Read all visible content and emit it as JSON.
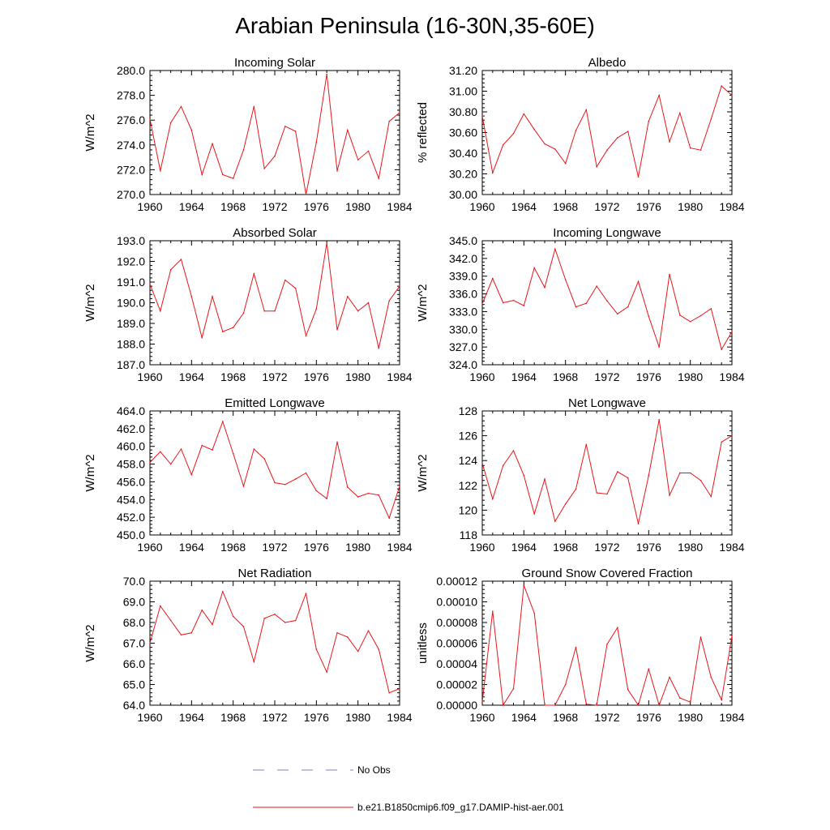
{
  "figure": {
    "title": "Arabian Peninsula (16-30N,35-60E)",
    "series_color": "#e8161b",
    "noobs_color": "#7f7fc8"
  },
  "legend": {
    "noobs_label": "No Obs",
    "model_label": "b.e21.B1850cmip6.f09_g17.DAMIP-hist-aer.001"
  },
  "chart_data": [
    {
      "type": "line",
      "title": "Incoming Solar",
      "ylabel": "W/m^2",
      "x": [
        1960,
        1961,
        1962,
        1963,
        1964,
        1965,
        1966,
        1967,
        1968,
        1969,
        1970,
        1971,
        1972,
        1973,
        1974,
        1975,
        1976,
        1977,
        1978,
        1979,
        1980,
        1981,
        1982,
        1983,
        1984
      ],
      "values": [
        276.1,
        271.9,
        275.8,
        277.1,
        275.2,
        271.6,
        274.1,
        271.6,
        271.3,
        273.6,
        277.1,
        272.1,
        273.1,
        275.5,
        275.1,
        270.0,
        274.2,
        279.7,
        271.9,
        275.2,
        272.8,
        273.5,
        271.3,
        275.9,
        276.6
      ],
      "xlim": [
        1960,
        1984
      ],
      "xticks": [
        "1960",
        "1964",
        "1968",
        "1972",
        "1976",
        "1980",
        "1984"
      ],
      "ylim": [
        270.0,
        280.0
      ],
      "yticks": [
        "270.0",
        "272.0",
        "274.0",
        "276.0",
        "278.0",
        "280.0"
      ]
    },
    {
      "type": "line",
      "title": "Albedo",
      "ylabel": "% reflected",
      "x": [
        1960,
        1961,
        1962,
        1963,
        1964,
        1965,
        1966,
        1967,
        1968,
        1969,
        1970,
        1971,
        1972,
        1973,
        1974,
        1975,
        1976,
        1977,
        1978,
        1979,
        1980,
        1981,
        1982,
        1983,
        1984
      ],
      "values": [
        30.76,
        30.21,
        30.48,
        30.59,
        30.78,
        30.63,
        30.49,
        30.44,
        30.3,
        30.62,
        30.82,
        30.27,
        30.43,
        30.55,
        30.61,
        30.17,
        30.71,
        30.96,
        30.51,
        30.79,
        30.45,
        30.43,
        30.73,
        31.05,
        30.96
      ],
      "xlim": [
        1960,
        1984
      ],
      "xticks": [
        "1960",
        "1964",
        "1968",
        "1972",
        "1976",
        "1980",
        "1984"
      ],
      "ylim": [
        30.0,
        31.2
      ],
      "yticks": [
        "30.00",
        "30.20",
        "30.40",
        "30.60",
        "30.80",
        "31.00",
        "31.20"
      ]
    },
    {
      "type": "line",
      "title": "Absorbed Solar",
      "ylabel": "W/m^2",
      "x": [
        1960,
        1961,
        1962,
        1963,
        1964,
        1965,
        1966,
        1967,
        1968,
        1969,
        1970,
        1971,
        1972,
        1973,
        1974,
        1975,
        1976,
        1977,
        1978,
        1979,
        1980,
        1981,
        1982,
        1983,
        1984
      ],
      "values": [
        190.9,
        189.6,
        191.6,
        192.1,
        190.3,
        188.3,
        190.3,
        188.6,
        188.8,
        189.5,
        191.4,
        189.6,
        189.6,
        191.1,
        190.7,
        188.4,
        189.7,
        192.9,
        188.7,
        190.3,
        189.6,
        190.0,
        187.8,
        190.1,
        190.8
      ],
      "xlim": [
        1960,
        1984
      ],
      "xticks": [
        "1960",
        "1964",
        "1968",
        "1972",
        "1976",
        "1980",
        "1984"
      ],
      "ylim": [
        187.0,
        193.0
      ],
      "yticks": [
        "187.0",
        "188.0",
        "189.0",
        "190.0",
        "191.0",
        "192.0",
        "193.0"
      ]
    },
    {
      "type": "line",
      "title": "Incoming Longwave",
      "ylabel": "W/m^2",
      "x": [
        1960,
        1961,
        1962,
        1963,
        1964,
        1965,
        1966,
        1967,
        1968,
        1969,
        1970,
        1971,
        1972,
        1973,
        1974,
        1975,
        1976,
        1977,
        1978,
        1979,
        1980,
        1981,
        1982,
        1983,
        1984
      ],
      "values": [
        334.3,
        338.6,
        334.5,
        334.9,
        334.0,
        340.4,
        337.1,
        343.6,
        338.4,
        333.8,
        334.4,
        337.3,
        334.8,
        332.6,
        333.8,
        338.1,
        332.2,
        327.0,
        339.3,
        332.4,
        331.3,
        332.3,
        333.5,
        326.6,
        329.6
      ],
      "xlim": [
        1960,
        1984
      ],
      "xticks": [
        "1960",
        "1964",
        "1968",
        "1972",
        "1976",
        "1980",
        "1984"
      ],
      "ylim": [
        324.0,
        345.0
      ],
      "yticks": [
        "324.0",
        "327.0",
        "330.0",
        "333.0",
        "336.0",
        "339.0",
        "342.0",
        "345.0"
      ]
    },
    {
      "type": "line",
      "title": "Emitted Longwave",
      "ylabel": "W/m^2",
      "x": [
        1960,
        1961,
        1962,
        1963,
        1964,
        1965,
        1966,
        1967,
        1968,
        1969,
        1970,
        1971,
        1972,
        1973,
        1974,
        1975,
        1976,
        1977,
        1978,
        1979,
        1980,
        1981,
        1982,
        1983,
        1984
      ],
      "values": [
        458.2,
        459.4,
        458.0,
        459.7,
        456.8,
        460.1,
        459.6,
        462.8,
        459.2,
        455.5,
        459.7,
        458.6,
        455.9,
        455.7,
        456.3,
        457.0,
        455.0,
        454.1,
        460.5,
        455.4,
        454.3,
        454.7,
        454.5,
        451.9,
        455.5
      ],
      "xlim": [
        1960,
        1984
      ],
      "xticks": [
        "1960",
        "1964",
        "1968",
        "1972",
        "1976",
        "1980",
        "1984"
      ],
      "ylim": [
        450.0,
        464.0
      ],
      "yticks": [
        "450.0",
        "452.0",
        "454.0",
        "456.0",
        "458.0",
        "460.0",
        "462.0",
        "464.0"
      ]
    },
    {
      "type": "line",
      "title": "Net Longwave",
      "ylabel": "W/m^2",
      "x": [
        1960,
        1961,
        1962,
        1963,
        1964,
        1965,
        1966,
        1967,
        1968,
        1969,
        1970,
        1971,
        1972,
        1973,
        1974,
        1975,
        1976,
        1977,
        1978,
        1979,
        1980,
        1981,
        1982,
        1983,
        1984
      ],
      "values": [
        123.8,
        120.9,
        123.6,
        124.8,
        122.8,
        119.7,
        122.5,
        119.1,
        120.5,
        121.7,
        125.3,
        121.4,
        121.3,
        123.1,
        122.6,
        118.9,
        122.8,
        127.3,
        121.2,
        123.0,
        123.0,
        122.4,
        121.1,
        125.5,
        126.0
      ],
      "xlim": [
        1960,
        1984
      ],
      "xticks": [
        "1960",
        "1964",
        "1968",
        "1972",
        "1976",
        "1980",
        "1984"
      ],
      "ylim": [
        118,
        128
      ],
      "yticks": [
        "118",
        "120",
        "122",
        "124",
        "126",
        "128"
      ]
    },
    {
      "type": "line",
      "title": "Net Radiation",
      "ylabel": "W/m^2",
      "x": [
        1960,
        1961,
        1962,
        1963,
        1964,
        1965,
        1966,
        1967,
        1968,
        1969,
        1970,
        1971,
        1972,
        1973,
        1974,
        1975,
        1976,
        1977,
        1978,
        1979,
        1980,
        1981,
        1982,
        1983,
        1984
      ],
      "values": [
        67.0,
        68.8,
        68.1,
        67.4,
        67.5,
        68.6,
        67.9,
        69.5,
        68.3,
        67.8,
        66.1,
        68.2,
        68.4,
        68.0,
        68.1,
        69.4,
        66.7,
        65.6,
        67.5,
        67.3,
        66.6,
        67.6,
        66.7,
        64.6,
        64.8
      ],
      "xlim": [
        1960,
        1984
      ],
      "xticks": [
        "1960",
        "1964",
        "1968",
        "1972",
        "1976",
        "1980",
        "1984"
      ],
      "ylim": [
        64.0,
        70.0
      ],
      "yticks": [
        "64.0",
        "65.0",
        "66.0",
        "67.0",
        "68.0",
        "69.0",
        "70.0"
      ]
    },
    {
      "type": "line",
      "title": "Ground Snow Covered Fraction",
      "ylabel": "unitless",
      "x": [
        1960,
        1961,
        1962,
        1963,
        1964,
        1965,
        1966,
        1967,
        1968,
        1969,
        1970,
        1971,
        1972,
        1973,
        1974,
        1975,
        1976,
        1977,
        1978,
        1979,
        1980,
        1981,
        1982,
        1983,
        1984
      ],
      "values": [
        3e-06,
        9.1e-05,
        0.0,
        1.6e-05,
        0.000116,
        8.9e-05,
        0.0,
        0.0,
        2e-05,
        5.6e-05,
        1e-06,
        0.0,
        5.9e-05,
        7.5e-05,
        1.5e-05,
        0.0,
        3.5e-05,
        0.0,
        2.7e-05,
        7e-06,
        3e-06,
        6.6e-05,
        2.7e-05,
        5e-06,
        6.7e-05
      ],
      "xlim": [
        1960,
        1984
      ],
      "xticks": [
        "1960",
        "1964",
        "1968",
        "1972",
        "1976",
        "1980",
        "1984"
      ],
      "ylim": [
        0.0,
        0.00012
      ],
      "yticks": [
        "0.00000",
        "0.00002",
        "0.00004",
        "0.00006",
        "0.00008",
        "0.00010",
        "0.00012"
      ]
    }
  ]
}
